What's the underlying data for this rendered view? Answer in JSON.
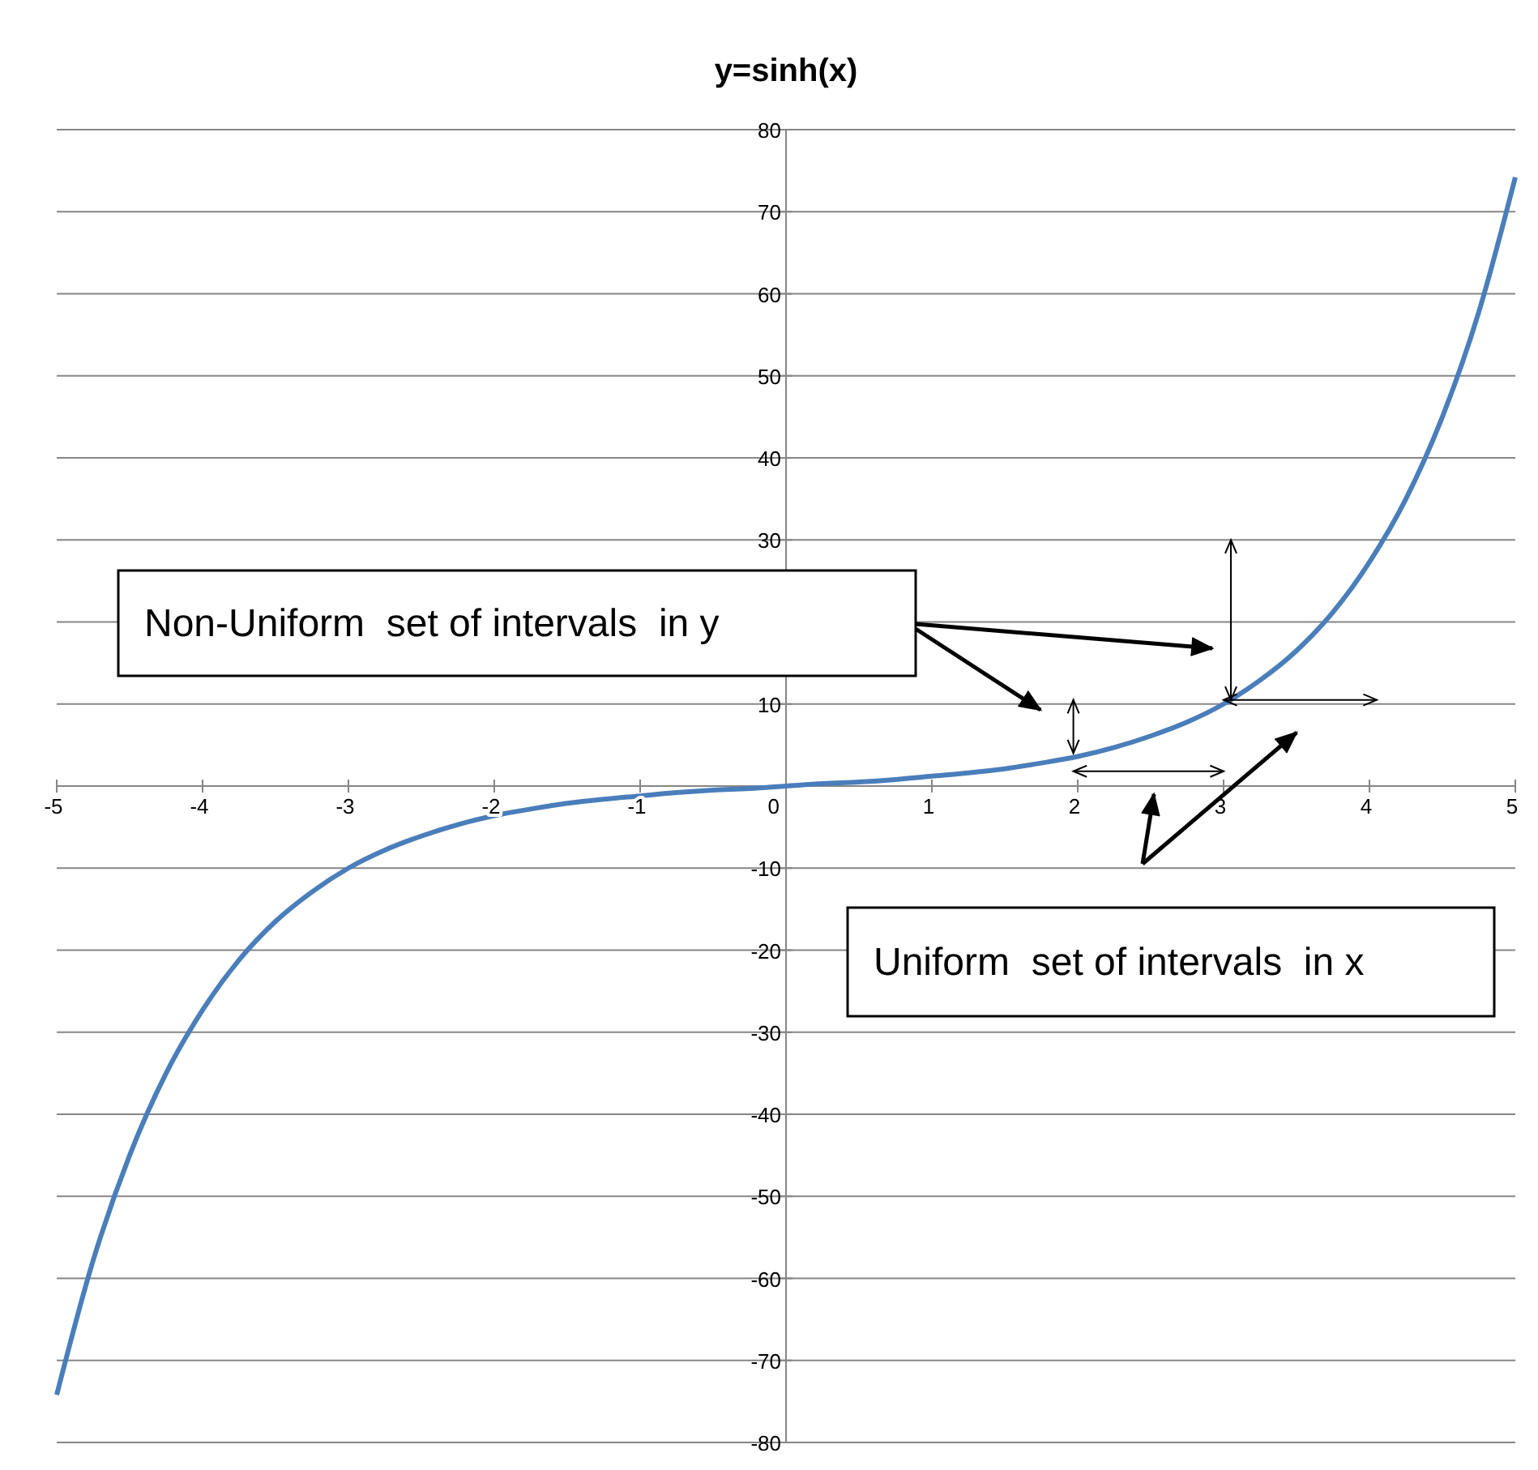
{
  "chart_data": {
    "type": "line",
    "title": "y=sinh(x)",
    "x": [
      -5,
      -4.75,
      -4.5,
      -4.25,
      -4,
      -3.75,
      -3.5,
      -3.25,
      -3,
      -2.75,
      -2.5,
      -2.25,
      -2,
      -1.75,
      -1.5,
      -1.25,
      -1,
      -0.75,
      -0.5,
      -0.25,
      0,
      0.25,
      0.5,
      0.75,
      1,
      1.25,
      1.5,
      1.75,
      2,
      2.25,
      2.5,
      2.75,
      3,
      3.25,
      3.5,
      3.75,
      4,
      4.25,
      4.5,
      4.75,
      5
    ],
    "series": [
      {
        "color": "#4a7ebb",
        "values": [
          -74.2,
          -57.8,
          -45.0,
          -35.0,
          -27.3,
          -21.2,
          -16.5,
          -12.9,
          -10.0,
          -7.8,
          -6.1,
          -4.7,
          -3.6,
          -2.8,
          -2.1,
          -1.6,
          -1.2,
          -0.8,
          -0.5,
          -0.3,
          0,
          0.3,
          0.5,
          0.8,
          1.2,
          1.6,
          2.1,
          2.8,
          3.6,
          4.7,
          6.1,
          7.8,
          10.0,
          12.9,
          16.5,
          21.2,
          27.3,
          35.0,
          45.0,
          57.8,
          74.2
        ]
      }
    ],
    "xlim": [
      -5,
      5
    ],
    "xticks": [
      -5,
      -4,
      -3,
      -2,
      -1,
      0,
      1,
      2,
      3,
      4,
      5
    ],
    "ylim": [
      -80,
      80
    ],
    "yticks": [
      -80,
      -70,
      -60,
      -50,
      -40,
      -30,
      -20,
      -10,
      {
        "value": 0,
        "label": null
      },
      10,
      {
        "value": 20,
        "label": null
      },
      30,
      40,
      50,
      60,
      70,
      80
    ],
    "grid": "y",
    "marker": "none",
    "line_style": "solid",
    "annotations": [
      "Non-Uniform  set of intervals  in y",
      "Uniform  set of intervals  in x"
    ]
  }
}
